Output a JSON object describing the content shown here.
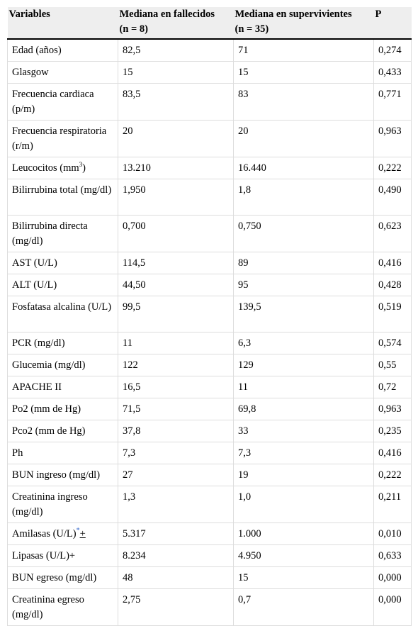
{
  "table": {
    "headers": {
      "variables": "Variables",
      "deceased_line1": "Mediana en fallecidos",
      "deceased_line2": "(n = 8)",
      "survivors_line1": "Mediana en supervivientes",
      "survivors_line2": "(n = 35)",
      "p": "P"
    },
    "rows": [
      {
        "variable": "Edad (años)",
        "deceased": "82,5",
        "survivors": "71",
        "p": "0,274"
      },
      {
        "variable": "Glasgow",
        "deceased": "15",
        "survivors": "15",
        "p": "0,433"
      },
      {
        "variable": "Frecuencia cardiaca (p/m)",
        "deceased": "83,5",
        "survivors": "83",
        "p": "0,771"
      },
      {
        "variable": "Frecuencia respiratoria (r/m)",
        "deceased": "20",
        "survivors": "20",
        "p": "0,963"
      },
      {
        "variable_pre": "Leucocitos (mm",
        "variable_sup": "3",
        "variable_post": ")",
        "deceased": "13.210",
        "survivors": "16.440",
        "p": "0,222"
      },
      {
        "variable": "Bilirrubina total (mg/dl)",
        "deceased": "1,950",
        "survivors": "1,8",
        "p": "0,490"
      },
      {
        "variable": "Bilirrubina directa (mg/dl)",
        "deceased": "0,700",
        "survivors": "0,750",
        "p": "0,623"
      },
      {
        "variable": "AST (U/L)",
        "deceased": "114,5",
        "survivors": "89",
        "p": "0,416"
      },
      {
        "variable": "ALT (U/L)",
        "deceased": "44,50",
        "survivors": "95",
        "p": "0,428"
      },
      {
        "variable": "Fosfatasa alcalina (U/L)",
        "deceased": "99,5",
        "survivors": "139,5",
        "p": "0,519"
      },
      {
        "variable": "PCR (mg/dl)",
        "deceased": "11",
        "survivors": "6,3",
        "p": "0,574"
      },
      {
        "variable": "Glucemia (mg/dl)",
        "deceased": "122",
        "survivors": "129",
        "p": "0,55"
      },
      {
        "variable": "APACHE II",
        "deceased": "16,5",
        "survivors": "11",
        "p": "0,72"
      },
      {
        "variable": "Po2 (mm de Hg)",
        "deceased": "71,5",
        "survivors": "69,8",
        "p": "0,963"
      },
      {
        "variable": "Pco2 (mm de Hg)",
        "deceased": "37,8",
        "survivors": "33",
        "p": "0,235"
      },
      {
        "variable": "Ph",
        "deceased": "7,3",
        "survivors": "7,3",
        "p": "0,416"
      },
      {
        "variable": "BUN ingreso (mg/dl)",
        "deceased": "27",
        "survivors": "19",
        "p": "0,222"
      },
      {
        "variable": "Creatinina ingreso (mg/dl)",
        "deceased": "1,3",
        "survivors": "1,0",
        "p": "0,211"
      },
      {
        "variable_pre": "Amilasas (U/L)",
        "variable_ref": "*",
        "variable_post": "+",
        "deceased": "5.317",
        "survivors": "1.000",
        "p": "0,010"
      },
      {
        "variable": "Lipasas (U/L)+",
        "deceased": "8.234",
        "survivors": "4.950",
        "p": "0,633"
      },
      {
        "variable": "BUN egreso (mg/dl)",
        "deceased": "48",
        "survivors": "15",
        "p": "0,000"
      },
      {
        "variable": "Creatinina egreso (mg/dl)",
        "deceased": "2,75",
        "survivors": "0,7",
        "p": "0,000"
      }
    ]
  }
}
